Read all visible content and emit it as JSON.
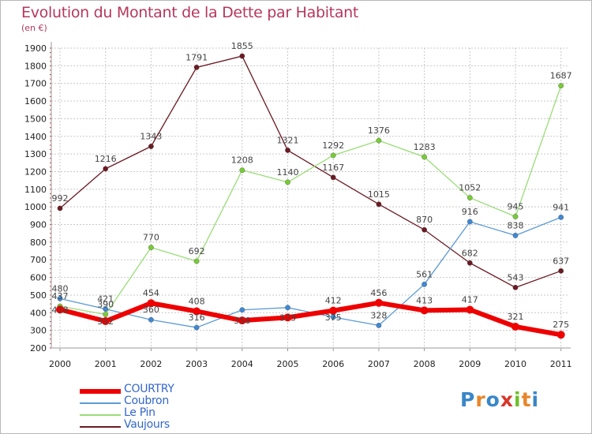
{
  "header": {
    "title": "Evolution du Montant de la Dette par Habitant",
    "subtitle": "(en €)"
  },
  "colors": {
    "title": "#b5375c",
    "grid": "#c8c8c8",
    "axis": "#999999"
  },
  "chart_data": {
    "type": "line",
    "categories": [
      "2000",
      "2001",
      "2002",
      "2003",
      "2004",
      "2005",
      "2006",
      "2007",
      "2008",
      "2009",
      "2010",
      "2011"
    ],
    "ylim": [
      200,
      1900
    ],
    "yticks": [
      200,
      300,
      400,
      500,
      600,
      700,
      800,
      900,
      1000,
      1100,
      1200,
      1300,
      1400,
      1500,
      1600,
      1700,
      1800,
      1900
    ],
    "grid": true,
    "legend_position": "bottom-left",
    "series": [
      {
        "name": "Vaujours",
        "color": "#6b1a23",
        "marker": "#6b1a23",
        "lineWidth": 1.3,
        "values": [
          992,
          1216,
          1343,
          1791,
          1855,
          1321,
          1167,
          1015,
          870,
          682,
          543,
          637
        ],
        "labels": [
          "992",
          "1216",
          "1343",
          "1791",
          "1855",
          "1321",
          "1167",
          "1015",
          "870",
          "682",
          "543",
          "637"
        ]
      },
      {
        "name": "Le Pin",
        "color": "#99dd77",
        "marker": "#77cc33",
        "lineWidth": 1.3,
        "values": [
          437,
          390,
          770,
          692,
          1208,
          1140,
          1292,
          1376,
          1283,
          1052,
          945,
          1687
        ],
        "labels": [
          "437",
          "390",
          "770",
          "692",
          "1208",
          "1140",
          "1292",
          "1376",
          "1283",
          "1052",
          "945",
          "1687"
        ]
      },
      {
        "name": "Coubron",
        "color": "#5b9bd5",
        "marker": "#3f88d4",
        "lineWidth": 1.3,
        "values": [
          480,
          421,
          360,
          316,
          416,
          429,
          375,
          328,
          561,
          916,
          838,
          941
        ],
        "labels": [
          "480",
          "421",
          "360",
          "316",
          "",
          "",
          "",
          "328",
          "561",
          "916",
          "838",
          "941"
        ]
      },
      {
        "name": "COURTRY",
        "color": "#ee0000",
        "marker": "#ee0000",
        "lineWidth": 6,
        "values": [
          418,
          352,
          454,
          408,
          356,
          373,
          412,
          456,
          413,
          417,
          321,
          275
        ],
        "labels": [
          "",
          "",
          "454",
          "408",
          "",
          "",
          "412",
          "456",
          "413",
          "417",
          "321",
          "275"
        ]
      }
    ],
    "overlap_labels": [
      {
        "index": 0,
        "text": "418",
        "y": 468
      },
      {
        "index": 1,
        "text": "352",
        "y": 419
      },
      {
        "index": 4,
        "text": "356",
        "y": 415
      },
      {
        "index": 5,
        "text": "373",
        "y": 416
      },
      {
        "index": 6,
        "text": "375",
        "y": 419
      }
    ]
  },
  "legend": [
    {
      "name": "COURTRY",
      "color": "#ee0000",
      "text_color": "#3366cc",
      "thickness": 6
    },
    {
      "name": "Coubron",
      "color": "#5b9bd5",
      "text_color": "#3366cc",
      "thickness": 2
    },
    {
      "name": "Le Pin",
      "color": "#99dd77",
      "text_color": "#3366cc",
      "thickness": 2
    },
    {
      "name": "Vaujours",
      "color": "#6b1a23",
      "text_color": "#3366cc",
      "thickness": 2
    }
  ],
  "logo": {
    "letters": [
      "P",
      "r",
      "o",
      "x",
      "i",
      "t",
      "i"
    ],
    "colors": [
      "#3a86c8",
      "#e8862a",
      "#3a86c8",
      "#d9362b",
      "#6fbf2a",
      "#e8862a",
      "#3a86c8"
    ]
  }
}
